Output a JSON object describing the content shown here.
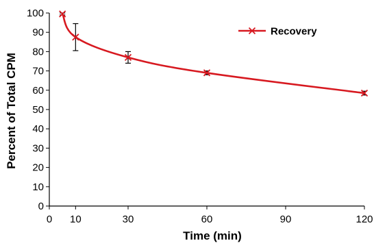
{
  "chart_data": {
    "type": "line",
    "title": "",
    "xlabel": "Time (min)",
    "ylabel": "Percent of Total CPM",
    "xlim": [
      0,
      120
    ],
    "ylim": [
      0,
      100
    ],
    "x_ticks": [
      0,
      10,
      30,
      60,
      90,
      120
    ],
    "y_ticks": [
      0,
      10,
      20,
      30,
      40,
      50,
      60,
      70,
      80,
      90,
      100
    ],
    "grid": false,
    "legend_position": "top-right",
    "series": [
      {
        "name": "Recovery",
        "color": "#d71920",
        "marker": "x",
        "x": [
          5,
          10,
          30,
          60,
          120
        ],
        "y": [
          99.5,
          87.5,
          77,
          69,
          58.5
        ],
        "error": [
          0.5,
          7,
          3,
          1,
          1
        ]
      }
    ]
  }
}
